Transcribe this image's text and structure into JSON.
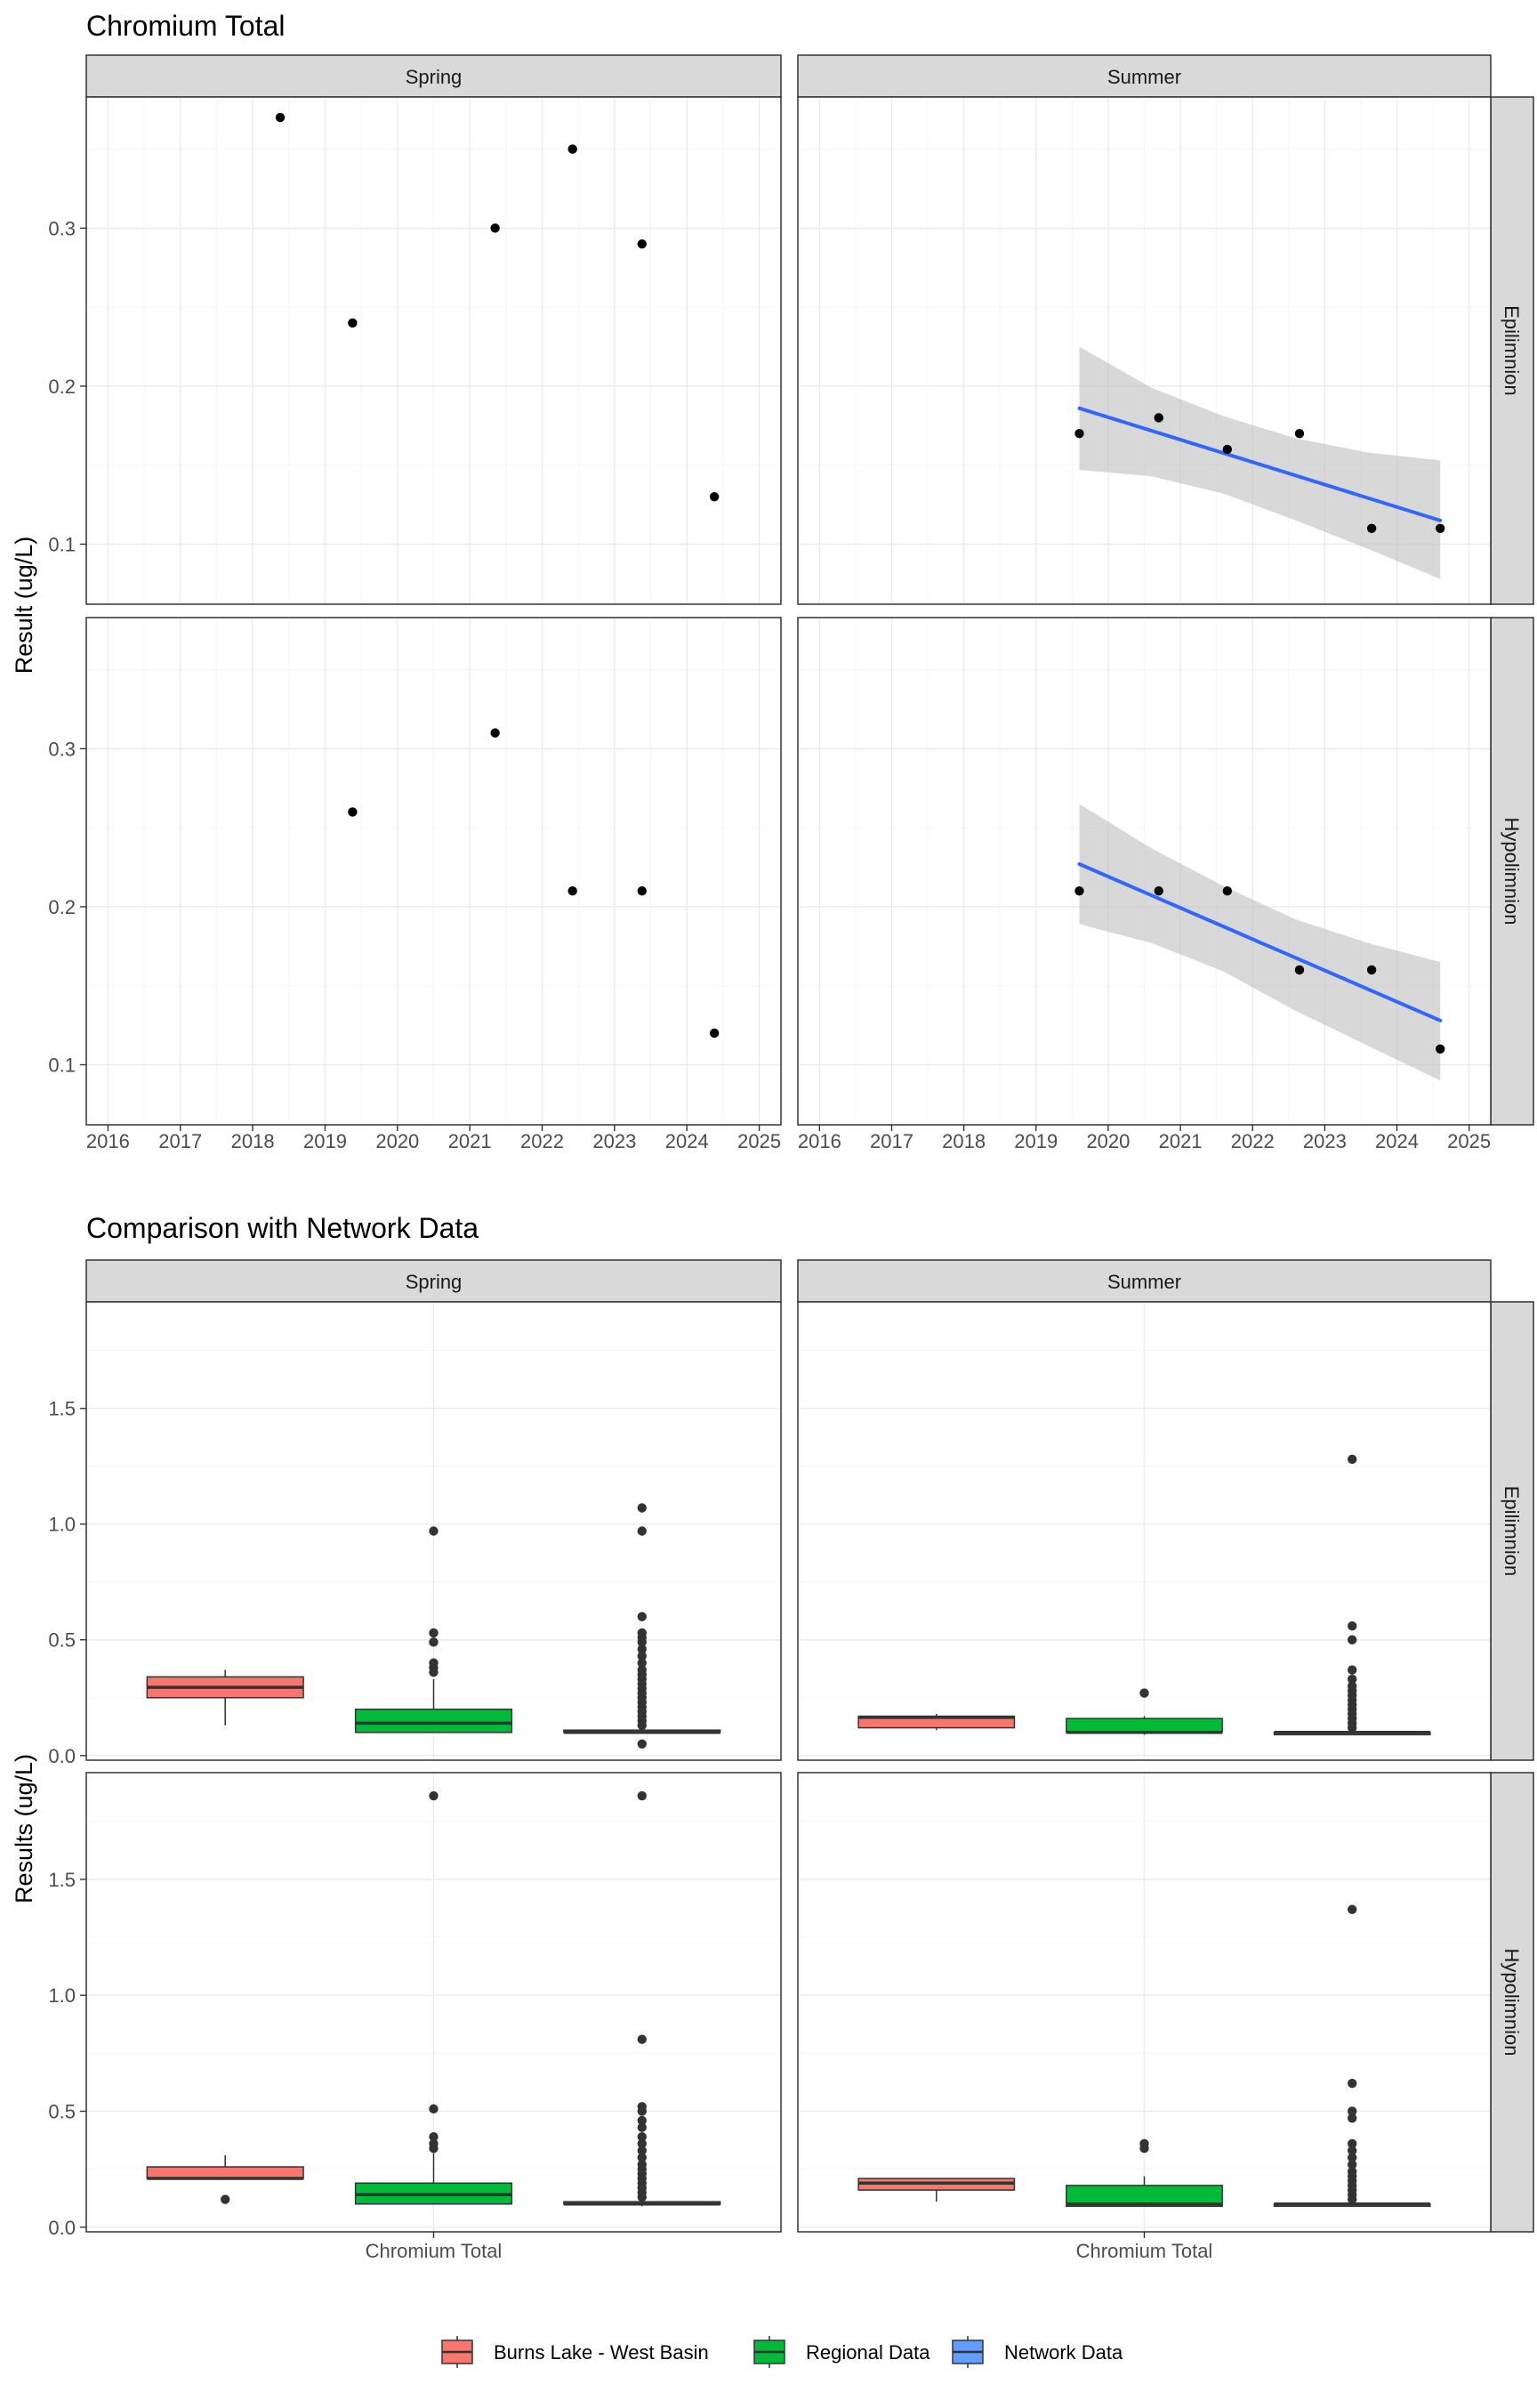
{
  "chart_data": [
    {
      "type": "scatter",
      "title": "Chromium Total",
      "ylabel": "Result (ug/L)",
      "xlabel": "",
      "columns": [
        "Spring",
        "Summer"
      ],
      "rows": [
        "Epilimnion",
        "Hypolimnion"
      ],
      "x_ticks": [
        "2016",
        "2017",
        "2018",
        "2019",
        "2020",
        "2021",
        "2022",
        "2023",
        "2024",
        "2025"
      ],
      "xlim": [
        2015.7,
        2025.3
      ],
      "y_ticks": [
        "0.1",
        "0.2",
        "0.3"
      ],
      "ylim": [
        0.062,
        0.383
      ],
      "grid": true,
      "point_color": "#000000",
      "trend_color": "#3366ff",
      "ribbon_color": "#bebebe",
      "panels": [
        {
          "column": "Spring",
          "row": "Epilimnion",
          "x": [
            2018.38,
            2019.38,
            2021.35,
            2022.42,
            2023.38,
            2024.38
          ],
          "y": [
            0.37,
            0.24,
            0.3,
            0.35,
            0.29,
            0.13
          ]
        },
        {
          "column": "Summer",
          "row": "Epilimnion",
          "x": [
            2019.6,
            2020.7,
            2021.65,
            2022.65,
            2023.65,
            2024.6
          ],
          "y": [
            0.17,
            0.18,
            0.16,
            0.17,
            0.11,
            0.11
          ],
          "trend": {
            "x": [
              2019.6,
              2024.6
            ],
            "y": [
              0.186,
              0.115
            ]
          },
          "ribbon": {
            "x": [
              2019.6,
              2020.6,
              2021.6,
              2022.6,
              2023.6,
              2024.6
            ],
            "upper": [
              0.225,
              0.199,
              0.181,
              0.167,
              0.158,
              0.153
            ],
            "lower": [
              0.147,
              0.143,
              0.132,
              0.115,
              0.097,
              0.078
            ]
          }
        },
        {
          "column": "Spring",
          "row": "Hypolimnion",
          "x": [
            2019.38,
            2021.35,
            2022.42,
            2023.38,
            2024.38
          ],
          "y": [
            0.26,
            0.31,
            0.21,
            0.21,
            0.12
          ]
        },
        {
          "column": "Summer",
          "row": "Hypolimnion",
          "x": [
            2019.6,
            2020.7,
            2021.65,
            2022.65,
            2023.65,
            2024.6
          ],
          "y": [
            0.21,
            0.21,
            0.21,
            0.16,
            0.16,
            0.11
          ],
          "trend": {
            "x": [
              2019.6,
              2024.6
            ],
            "y": [
              0.227,
              0.128
            ]
          },
          "ribbon": {
            "x": [
              2019.6,
              2020.6,
              2021.6,
              2022.6,
              2023.6,
              2024.6
            ],
            "upper": [
              0.265,
              0.237,
              0.213,
              0.192,
              0.177,
              0.165
            ],
            "lower": [
              0.189,
              0.177,
              0.159,
              0.134,
              0.112,
              0.09
            ]
          }
        }
      ]
    },
    {
      "type": "box",
      "title": "Comparison with Network Data",
      "ylabel": "Results (ug/L)",
      "xlabel": "",
      "columns": [
        "Spring",
        "Summer"
      ],
      "rows": [
        "Epilimnion",
        "Hypolimnion"
      ],
      "categories": [
        "Chromium Total"
      ],
      "y_ticks": [
        "0.0",
        "0.5",
        "1.0",
        "1.5"
      ],
      "ylim": [
        -0.02,
        1.96
      ],
      "grid": true,
      "legend_position": "bottom",
      "series": [
        {
          "name": "Burns Lake - West Basin",
          "color": "#f8766d"
        },
        {
          "name": "Regional Data",
          "color": "#00ba38"
        },
        {
          "name": "Network Data",
          "color": "#619cff"
        }
      ],
      "panels": [
        {
          "column": "Spring",
          "row": "Epilimnion",
          "boxes": [
            {
              "series": "Burns Lake - West Basin",
              "min": 0.13,
              "q1": 0.25,
              "median": 0.295,
              "q3": 0.34,
              "max": 0.37,
              "outliers": []
            },
            {
              "series": "Regional Data",
              "min": 0.1,
              "q1": 0.1,
              "median": 0.14,
              "q3": 0.2,
              "max": 0.33,
              "outliers": [
                0.36,
                0.38,
                0.4,
                0.49,
                0.53,
                0.97
              ]
            },
            {
              "series": "Network Data",
              "min": 0.1,
              "q1": 0.1,
              "median": 0.1,
              "q3": 0.11,
              "max": 0.12,
              "outliers": [
                0.05,
                0.13,
                0.15,
                0.17,
                0.19,
                0.21,
                0.23,
                0.25,
                0.27,
                0.29,
                0.31,
                0.33,
                0.35,
                0.37,
                0.4,
                0.43,
                0.46,
                0.49,
                0.51,
                0.53,
                0.6,
                0.97,
                1.07
              ]
            }
          ]
        },
        {
          "column": "Summer",
          "row": "Epilimnion",
          "boxes": [
            {
              "series": "Burns Lake - West Basin",
              "min": 0.11,
              "q1": 0.12,
              "median": 0.165,
              "q3": 0.17,
              "max": 0.18,
              "outliers": []
            },
            {
              "series": "Regional Data",
              "min": 0.09,
              "q1": 0.1,
              "median": 0.1,
              "q3": 0.16,
              "max": 0.17,
              "outliers": [
                0.27
              ]
            },
            {
              "series": "Network Data",
              "min": 0.09,
              "q1": 0.09,
              "median": 0.1,
              "q3": 0.1,
              "max": 0.11,
              "outliers": [
                0.12,
                0.14,
                0.16,
                0.18,
                0.2,
                0.22,
                0.24,
                0.26,
                0.28,
                0.3,
                0.33,
                0.37,
                0.5,
                0.56,
                1.28
              ]
            }
          ]
        },
        {
          "column": "Spring",
          "row": "Hypolimnion",
          "boxes": [
            {
              "series": "Burns Lake - West Basin",
              "min": 0.21,
              "q1": 0.21,
              "median": 0.21,
              "q3": 0.26,
              "max": 0.31,
              "outliers": [
                0.12
              ]
            },
            {
              "series": "Regional Data",
              "min": 0.1,
              "q1": 0.1,
              "median": 0.14,
              "q3": 0.19,
              "max": 0.32,
              "outliers": [
                0.34,
                0.36,
                0.39,
                0.51,
                1.86
              ]
            },
            {
              "series": "Network Data",
              "min": 0.09,
              "q1": 0.1,
              "median": 0.1,
              "q3": 0.11,
              "max": 0.12,
              "outliers": [
                0.13,
                0.15,
                0.17,
                0.19,
                0.21,
                0.23,
                0.25,
                0.27,
                0.3,
                0.33,
                0.36,
                0.39,
                0.43,
                0.46,
                0.5,
                0.52,
                0.81,
                1.86
              ]
            }
          ]
        },
        {
          "column": "Summer",
          "row": "Hypolimnion",
          "boxes": [
            {
              "series": "Burns Lake - West Basin",
              "min": 0.11,
              "q1": 0.16,
              "median": 0.19,
              "q3": 0.21,
              "max": 0.21,
              "outliers": []
            },
            {
              "series": "Regional Data",
              "min": 0.09,
              "q1": 0.09,
              "median": 0.1,
              "q3": 0.18,
              "max": 0.22,
              "outliers": [
                0.34,
                0.36
              ]
            },
            {
              "series": "Network Data",
              "min": 0.09,
              "q1": 0.09,
              "median": 0.1,
              "q3": 0.1,
              "max": 0.11,
              "outliers": [
                0.12,
                0.14,
                0.16,
                0.18,
                0.2,
                0.22,
                0.24,
                0.27,
                0.3,
                0.33,
                0.36,
                0.47,
                0.5,
                0.62,
                1.37
              ]
            }
          ]
        }
      ]
    }
  ]
}
